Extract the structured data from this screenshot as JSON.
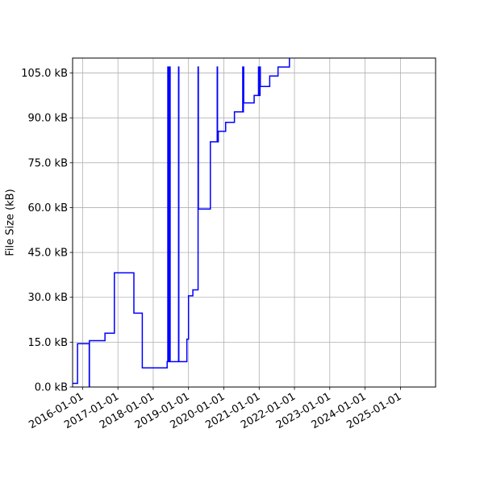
{
  "chart_data": {
    "type": "line",
    "title": "",
    "xlabel": "",
    "ylabel": "File Size (kB)",
    "x_type": "date",
    "xlim": [
      "2015-09-20",
      "2025-12-31"
    ],
    "ylim": [
      0,
      110
    ],
    "grid": true,
    "legend": "none",
    "x_ticks": [
      "2016-01-01",
      "2017-01-01",
      "2018-01-01",
      "2019-01-01",
      "2020-01-01",
      "2021-01-01",
      "2022-01-01",
      "2023-01-01",
      "2024-01-01",
      "2025-01-01"
    ],
    "y_ticks": [
      0,
      15,
      30,
      45,
      60,
      75,
      90,
      105
    ],
    "y_tick_labels": [
      "0.0 kB",
      "15.0 kB",
      "30.0 kB",
      "45.0 kB",
      "60.0 kB",
      "75.0 kB",
      "90.0 kB",
      "105.0 kB"
    ],
    "series": [
      {
        "color": "#0000ff",
        "step": "post",
        "points": [
          [
            "2015-09-20",
            1.2
          ],
          [
            "2015-11-10",
            14.5
          ],
          [
            "2016-03-10",
            0
          ],
          [
            "2016-03-12",
            15.5
          ],
          [
            "2016-08-20",
            18.0
          ],
          [
            "2016-11-25",
            38.2
          ],
          [
            "2017-06-15",
            24.7
          ],
          [
            "2017-09-10",
            6.4
          ],
          [
            "2018-05-25",
            8.5
          ],
          [
            "2018-06-01",
            107
          ],
          [
            "2018-06-05",
            8.5
          ],
          [
            "2018-06-10",
            107
          ],
          [
            "2018-06-15",
            8.5
          ],
          [
            "2018-06-20",
            107
          ],
          [
            "2018-06-25",
            8.5
          ],
          [
            "2018-09-20",
            107
          ],
          [
            "2018-09-23",
            8.5
          ],
          [
            "2018-12-15",
            16.0
          ],
          [
            "2019-01-01",
            30.5
          ],
          [
            "2019-02-15",
            32.5
          ],
          [
            "2019-04-10",
            107
          ],
          [
            "2019-04-13",
            59.5
          ],
          [
            "2019-08-15",
            82.0
          ],
          [
            "2019-10-25",
            107
          ],
          [
            "2019-10-28",
            82.0
          ],
          [
            "2019-11-05",
            85.5
          ],
          [
            "2020-01-20",
            88.5
          ],
          [
            "2020-04-20",
            92.0
          ],
          [
            "2020-07-15",
            107
          ],
          [
            "2020-07-18",
            92.0
          ],
          [
            "2020-07-22",
            107
          ],
          [
            "2020-07-25",
            95.0
          ],
          [
            "2020-11-10",
            97.5
          ],
          [
            "2020-12-25",
            107
          ],
          [
            "2020-12-28",
            97.5
          ],
          [
            "2021-01-10",
            107
          ],
          [
            "2021-01-13",
            100.5
          ],
          [
            "2021-04-20",
            104.0
          ],
          [
            "2021-07-15",
            107.0
          ],
          [
            "2021-11-10",
            110
          ]
        ]
      }
    ]
  }
}
